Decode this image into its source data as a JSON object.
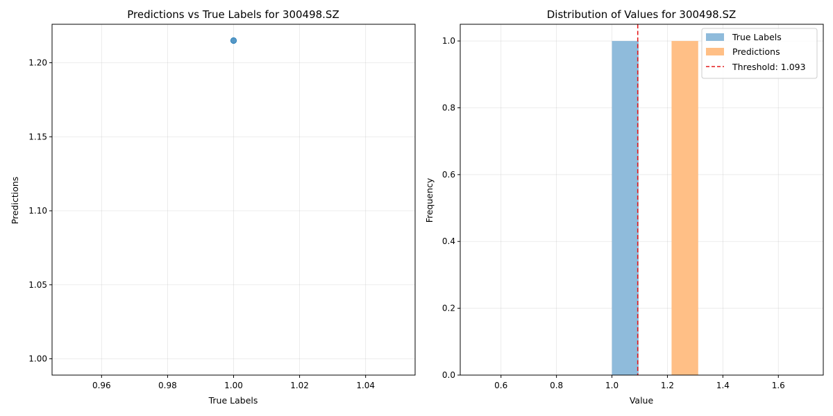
{
  "chart_data": [
    {
      "type": "scatter",
      "title": "Predictions vs True Labels for 300498.SZ",
      "xlabel": "True Labels",
      "ylabel": "Predictions",
      "xlim": [
        0.945,
        1.055
      ],
      "ylim": [
        0.989,
        1.226
      ],
      "xticks": [
        "0.96",
        "0.98",
        "1.00",
        "1.02",
        "1.04"
      ],
      "xtick_values": [
        0.96,
        0.98,
        1.0,
        1.02,
        1.04
      ],
      "yticks": [
        "1.00",
        "1.05",
        "1.10",
        "1.15",
        "1.20"
      ],
      "ytick_values": [
        1.0,
        1.05,
        1.1,
        1.15,
        1.2
      ],
      "grid": true,
      "points": [
        {
          "x": 1.0,
          "y": 1.215
        }
      ],
      "color": "#1f77b4"
    },
    {
      "type": "bar",
      "title": "Distribution of Values for 300498.SZ",
      "xlabel": "Value",
      "ylabel": "Frequency",
      "xlim": [
        0.453,
        1.762
      ],
      "ylim": [
        0,
        1.05
      ],
      "xticks": [
        "0.6",
        "0.8",
        "1.0",
        "1.2",
        "1.4",
        "1.6"
      ],
      "xtick_values": [
        0.6,
        0.8,
        1.0,
        1.2,
        1.4,
        1.6
      ],
      "yticks": [
        "0.0",
        "0.2",
        "0.4",
        "0.6",
        "0.8",
        "1.0"
      ],
      "ytick_values": [
        0.0,
        0.2,
        0.4,
        0.6,
        0.8,
        1.0
      ],
      "grid": true,
      "legend_position": "top-right",
      "series": [
        {
          "name": "True Labels",
          "bins": [
            {
              "x0": 1.0,
              "x1": 1.096,
              "value": 1
            }
          ],
          "color": "#8fbbdb"
        },
        {
          "name": "Predictions",
          "bins": [
            {
              "x0": 1.215,
              "x1": 1.311,
              "value": 1
            }
          ],
          "color": "#ffbf86"
        }
      ],
      "threshold": {
        "label": "Threshold: 1.093",
        "value": 1.093,
        "color": "#e31a1c"
      }
    }
  ]
}
